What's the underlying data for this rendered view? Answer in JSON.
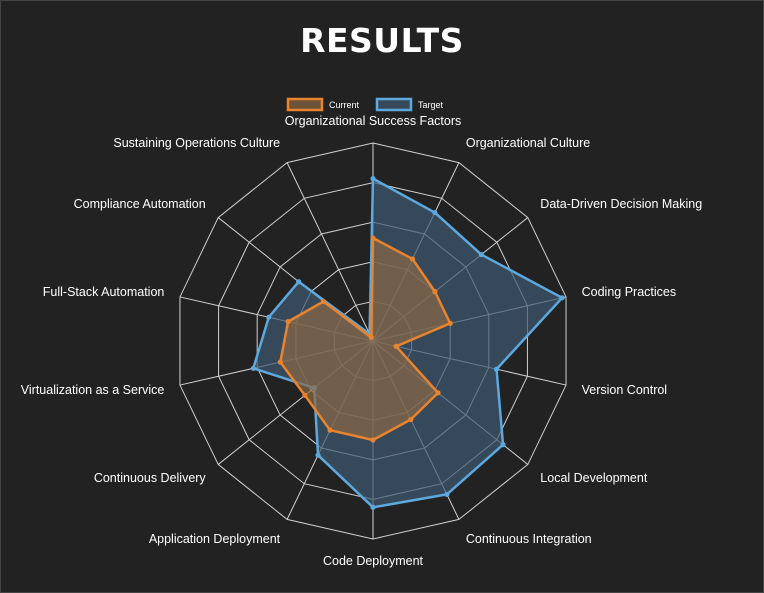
{
  "title": "RESULTS",
  "chart_data": {
    "type": "radar",
    "title": "RESULTS",
    "axes": [
      "Organizational Success Factors",
      "Organizational Culture",
      "Data-Driven Decision Making",
      "Coding Practices",
      "Version Control",
      "Local Development",
      "Continuous Integration",
      "Code Deployment",
      "Application Deployment",
      "Continuous Delivery",
      "Virtualization as a Service",
      "Full-Stack Automation",
      "Compliance Automation",
      "Sustaining Operations Culture"
    ],
    "rlim": [
      0,
      5
    ],
    "rings": 5,
    "grid": true,
    "legend": "top-center",
    "series": [
      {
        "name": "Current",
        "color": "#e8832e",
        "fill": "#8c6a45",
        "values": [
          2.6,
          2.3,
          2.0,
          2.0,
          0.6,
          2.1,
          2.2,
          2.5,
          2.5,
          2.2,
          2.4,
          2.2,
          1.6,
          0.1
        ]
      },
      {
        "name": "Target",
        "color": "#5da8dd",
        "fill": "#3e5a73",
        "values": [
          4.1,
          3.6,
          3.5,
          4.9,
          3.2,
          4.2,
          4.3,
          4.2,
          3.2,
          1.9,
          3.1,
          2.7,
          2.4,
          0.2
        ]
      }
    ]
  }
}
